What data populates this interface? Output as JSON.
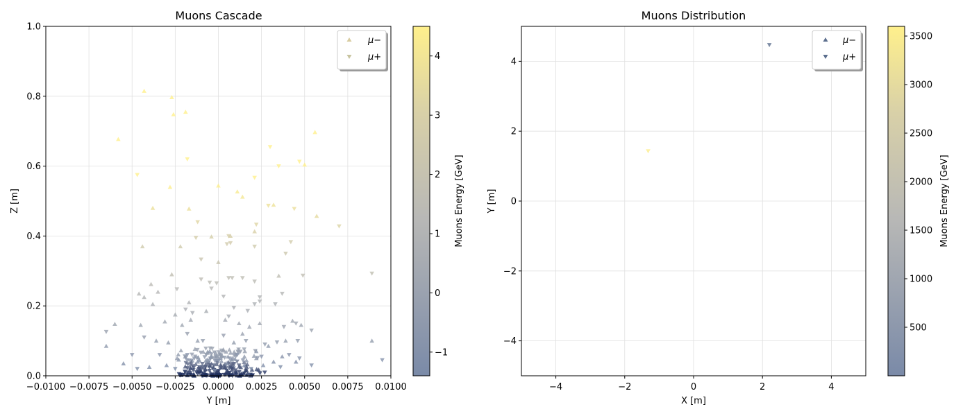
{
  "colors": {
    "colormap_stops": [
      "#7a8aa8",
      "#b8b8b6",
      "#d8d0a8",
      "#fff08c"
    ],
    "grid": "#e0e0e0",
    "dense_cluster": "#1a2a5a"
  },
  "chart_data": [
    {
      "type": "scatter",
      "title": "Muons Cascade",
      "xlabel": "Y [m]",
      "ylabel": "Z [m]",
      "xlim": [
        -0.01,
        0.01
      ],
      "ylim": [
        0,
        1.0
      ],
      "xticks": [
        "−0.0100",
        "−0.0075",
        "−0.0050",
        "−0.0025",
        "0.0000",
        "0.0025",
        "0.0050",
        "0.0075",
        "0.0100"
      ],
      "yticks": [
        "0.0",
        "0.2",
        "0.4",
        "0.6",
        "0.8",
        "1.0"
      ],
      "grid": true,
      "legend": {
        "placement": "top-right",
        "entries": [
          {
            "label": "μ−",
            "marker": "triangle-up"
          },
          {
            "label": "μ+",
            "marker": "triangle-down"
          }
        ]
      },
      "colorbar": {
        "label": "Muons Energy [GeV]",
        "range": [
          -1.4,
          4.5
        ],
        "ticks": [
          "−1",
          "0",
          "1",
          "2",
          "3",
          "4"
        ]
      },
      "series": [
        {
          "name": "μ−",
          "marker": "triangle-up",
          "points": [
            [
              -0.0043,
              0.815
            ],
            [
              -0.0027,
              0.797
            ],
            [
              -0.0019,
              0.755
            ],
            [
              -0.0026,
              0.748
            ],
            [
              -0.0058,
              0.677
            ],
            [
              -0.0038,
              0.48
            ],
            [
              -0.0017,
              0.478
            ],
            [
              -0.0028,
              0.54
            ],
            [
              -0.0044,
              0.37
            ],
            [
              -0.0022,
              0.37
            ],
            [
              0.0,
              0.544
            ],
            [
              0.0011,
              0.527
            ],
            [
              0.0014,
              0.512
            ],
            [
              0.0032,
              0.489
            ],
            [
              0.0056,
              0.697
            ],
            [
              0.005,
              0.604
            ],
            [
              0.0057,
              0.457
            ],
            [
              0.0007,
              0.4
            ],
            [
              -0.0004,
              0.398
            ],
            [
              0.0,
              0.325
            ],
            [
              0.0021,
              0.413
            ],
            [
              0.0035,
              0.286
            ],
            [
              0.0089,
              0.1
            ],
            [
              -0.0027,
              0.29
            ],
            [
              -0.0039,
              0.262
            ],
            [
              -0.0046,
              0.235
            ],
            [
              -0.0035,
              0.24
            ],
            [
              -0.0043,
              0.225
            ],
            [
              -0.0031,
              0.155
            ],
            [
              -0.0038,
              0.205
            ],
            [
              -0.0025,
              0.175
            ],
            [
              -0.0017,
              0.21
            ],
            [
              -0.0007,
              0.185
            ],
            [
              0.0004,
              0.16
            ],
            [
              0.0012,
              0.15
            ],
            [
              0.0018,
              0.14
            ],
            [
              0.0024,
              0.15
            ],
            [
              0.0039,
              0.1
            ],
            [
              0.0043,
              0.157
            ],
            [
              0.0048,
              0.145
            ],
            [
              0.0029,
              0.085
            ],
            [
              0.0014,
              0.12
            ],
            [
              -0.0012,
              0.1
            ],
            [
              -0.0036,
              0.1
            ],
            [
              -0.006,
              0.148
            ],
            [
              -0.0065,
              0.085
            ],
            [
              -0.0045,
              0.145
            ],
            [
              -0.0029,
              0.095
            ],
            [
              -0.0021,
              0.145
            ],
            [
              -0.0016,
              0.16
            ],
            [
              -0.0005,
              0.07
            ],
            [
              0.0009,
              0.095
            ],
            [
              0.0022,
              0.07
            ],
            [
              0.0037,
              0.055
            ],
            [
              0.0045,
              0.04
            ],
            [
              -0.0055,
              0.035
            ],
            [
              -0.004,
              0.025
            ],
            [
              -0.003,
              0.03
            ],
            [
              -0.0012,
              0.04
            ],
            [
              0.0005,
              0.035
            ],
            [
              0.0015,
              0.03
            ],
            [
              0.0026,
              0.03
            ],
            [
              0.0032,
              0.04
            ]
          ]
        },
        {
          "name": "μ+",
          "marker": "triangle-down",
          "points": [
            [
              -0.0047,
              0.575
            ],
            [
              -0.0018,
              0.62
            ],
            [
              0.003,
              0.655
            ],
            [
              0.0035,
              0.6
            ],
            [
              0.0047,
              0.613
            ],
            [
              0.0021,
              0.567
            ],
            [
              0.0044,
              0.478
            ],
            [
              0.0029,
              0.487
            ],
            [
              -0.0012,
              0.44
            ],
            [
              0.0022,
              0.433
            ],
            [
              0.0006,
              0.4
            ],
            [
              0.0005,
              0.377
            ],
            [
              0.0007,
              0.38
            ],
            [
              -0.0013,
              0.395
            ],
            [
              0.0021,
              0.37
            ],
            [
              0.0042,
              0.383
            ],
            [
              0.0039,
              0.35
            ],
            [
              0.007,
              0.428
            ],
            [
              -0.001,
              0.333
            ],
            [
              0.0006,
              0.28
            ],
            [
              0.0008,
              0.28
            ],
            [
              0.0014,
              0.28
            ],
            [
              0.0021,
              0.27
            ],
            [
              -0.001,
              0.276
            ],
            [
              0.0089,
              0.293
            ],
            [
              0.0049,
              0.287
            ],
            [
              -0.0005,
              0.267
            ],
            [
              -0.0001,
              0.265
            ],
            [
              -0.0024,
              0.248
            ],
            [
              -0.0004,
              0.25
            ],
            [
              0.0003,
              0.227
            ],
            [
              0.0024,
              0.225
            ],
            [
              0.0037,
              0.235
            ],
            [
              0.0033,
              0.205
            ],
            [
              0.0024,
              0.213
            ],
            [
              0.0021,
              0.205
            ],
            [
              -0.0019,
              0.19
            ],
            [
              -0.0015,
              0.18
            ],
            [
              0.0009,
              0.195
            ],
            [
              0.0017,
              0.186
            ],
            [
              0.0006,
              0.17
            ],
            [
              0.0045,
              0.15
            ],
            [
              0.0038,
              0.14
            ],
            [
              0.0054,
              0.13
            ],
            [
              0.0046,
              0.1
            ],
            [
              -0.0065,
              0.126
            ],
            [
              -0.0043,
              0.11
            ],
            [
              -0.0018,
              0.12
            ],
            [
              -0.0009,
              0.1
            ],
            [
              0.0003,
              0.115
            ],
            [
              0.0016,
              0.1
            ],
            [
              0.0027,
              0.09
            ],
            [
              0.0034,
              0.096
            ],
            [
              0.0095,
              0.045
            ],
            [
              -0.005,
              0.06
            ],
            [
              -0.0034,
              0.06
            ],
            [
              -0.0018,
              0.06
            ],
            [
              0.0011,
              0.06
            ],
            [
              0.0025,
              0.055
            ],
            [
              0.0041,
              0.06
            ],
            [
              0.0047,
              0.05
            ],
            [
              0.0054,
              0.03
            ],
            [
              -0.0047,
              0.02
            ],
            [
              -0.0025,
              0.02
            ],
            [
              -0.0002,
              0.015
            ],
            [
              0.0019,
              0.02
            ],
            [
              0.0036,
              0.025
            ]
          ]
        }
      ],
      "dense_cluster": {
        "x_range": [
          -0.0028,
          0.0028
        ],
        "y_range": [
          0.0,
          0.08
        ],
        "note": "many overlapping low-energy muons near the origin"
      }
    },
    {
      "type": "scatter",
      "title": "Muons Distribution",
      "xlabel": "X [m]",
      "ylabel": "Y [m]",
      "xlim": [
        -5,
        5
      ],
      "ylim": [
        -5,
        5
      ],
      "xticks": [
        "−4",
        "−2",
        "0",
        "2",
        "4"
      ],
      "yticks": [
        "−4",
        "−2",
        "0",
        "2",
        "4"
      ],
      "grid": true,
      "legend": {
        "placement": "top-right",
        "entries": [
          {
            "label": "μ−",
            "marker": "triangle-up"
          },
          {
            "label": "μ+",
            "marker": "triangle-down"
          }
        ]
      },
      "colorbar": {
        "label": "Muons Energy [GeV]",
        "range": [
          0,
          3600
        ],
        "ticks": [
          "500",
          "1000",
          "1500",
          "2000",
          "2500",
          "3000",
          "3500"
        ]
      },
      "series": [
        {
          "name": "μ−",
          "marker": "triangle-up",
          "points": []
        },
        {
          "name": "μ+",
          "marker": "triangle-down",
          "points": [
            [
              2.2,
              4.47,
              100
            ],
            [
              -1.32,
              1.43,
              3550
            ]
          ]
        }
      ]
    }
  ]
}
